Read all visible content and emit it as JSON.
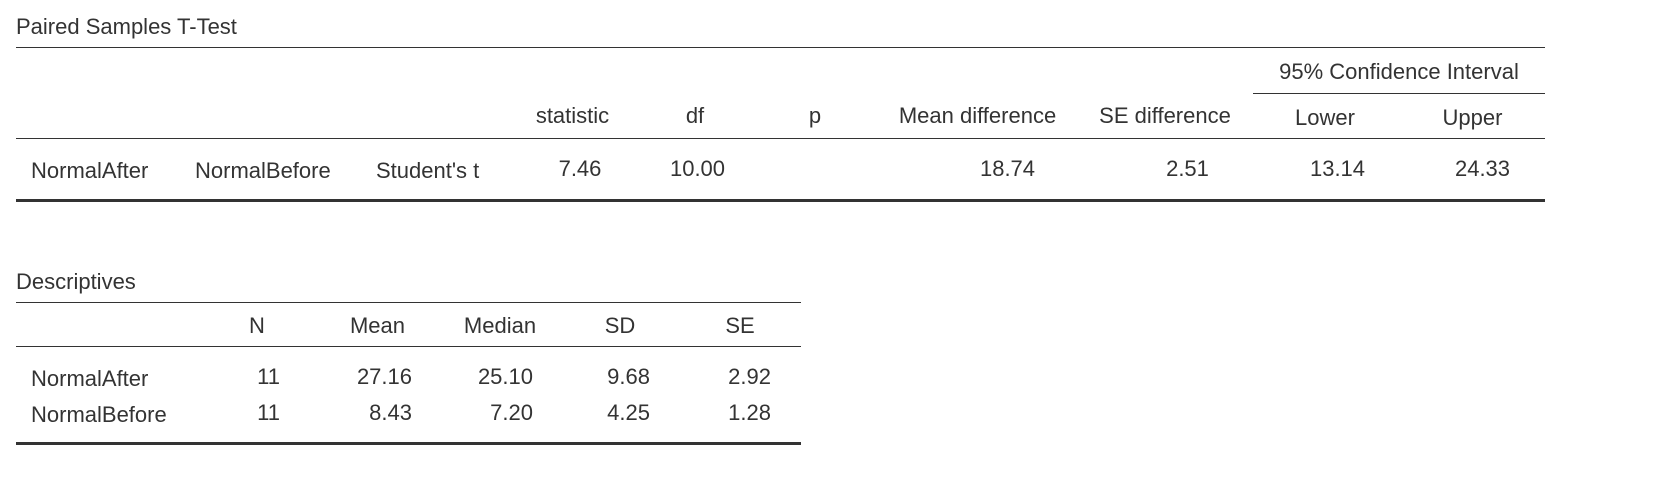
{
  "ttest": {
    "title": "Paired Samples T-Test",
    "ci_header": "95% Confidence Interval",
    "headers": {
      "statistic": "statistic",
      "df": "df",
      "p": "p",
      "mean_diff": "Mean difference",
      "se_diff": "SE difference",
      "lower": "Lower",
      "upper": "Upper"
    },
    "row": {
      "var1": "NormalAfter",
      "var2": "NormalBefore",
      "test": "Student's t",
      "statistic": "7.46",
      "df": "10.00",
      "p": "",
      "mean_diff": "18.74",
      "se_diff": "2.51",
      "lower": "13.14",
      "upper": "24.33"
    }
  },
  "descriptives": {
    "title": "Descriptives",
    "headers": {
      "n": "N",
      "mean": "Mean",
      "median": "Median",
      "sd": "SD",
      "se": "SE"
    },
    "rows": [
      {
        "label": "NormalAfter",
        "n": "11",
        "mean": "27.16",
        "median": "25.10",
        "sd": "9.68",
        "se": "2.92"
      },
      {
        "label": "NormalBefore",
        "n": "11",
        "mean": "8.43",
        "median": "7.20",
        "sd": "4.25",
        "se": "1.28"
      }
    ]
  }
}
